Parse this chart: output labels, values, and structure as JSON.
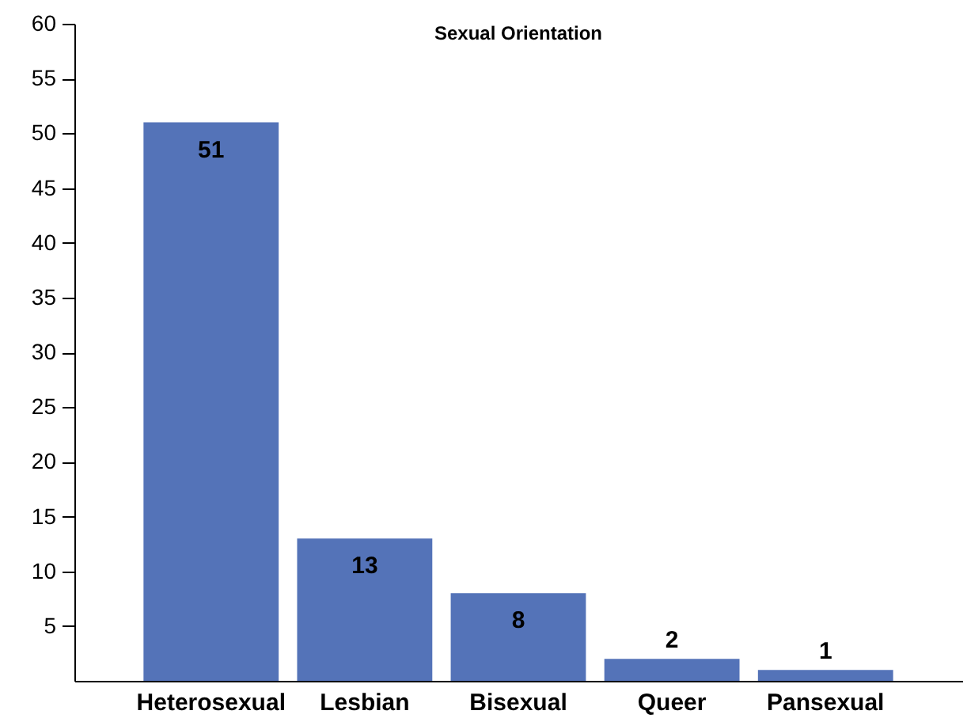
{
  "chart_data": {
    "type": "bar",
    "title": "Sexual Orientation",
    "categories": [
      "Heterosexual",
      "Lesbian",
      "Bisexual",
      "Queer",
      "Pansexual"
    ],
    "values": [
      51,
      13,
      8,
      2,
      1
    ],
    "color": "#5473b8",
    "ylim": [
      0,
      60
    ],
    "yticks": [
      5,
      10,
      15,
      20,
      25,
      30,
      35,
      40,
      45,
      50,
      55,
      60
    ],
    "data_labels": true
  }
}
